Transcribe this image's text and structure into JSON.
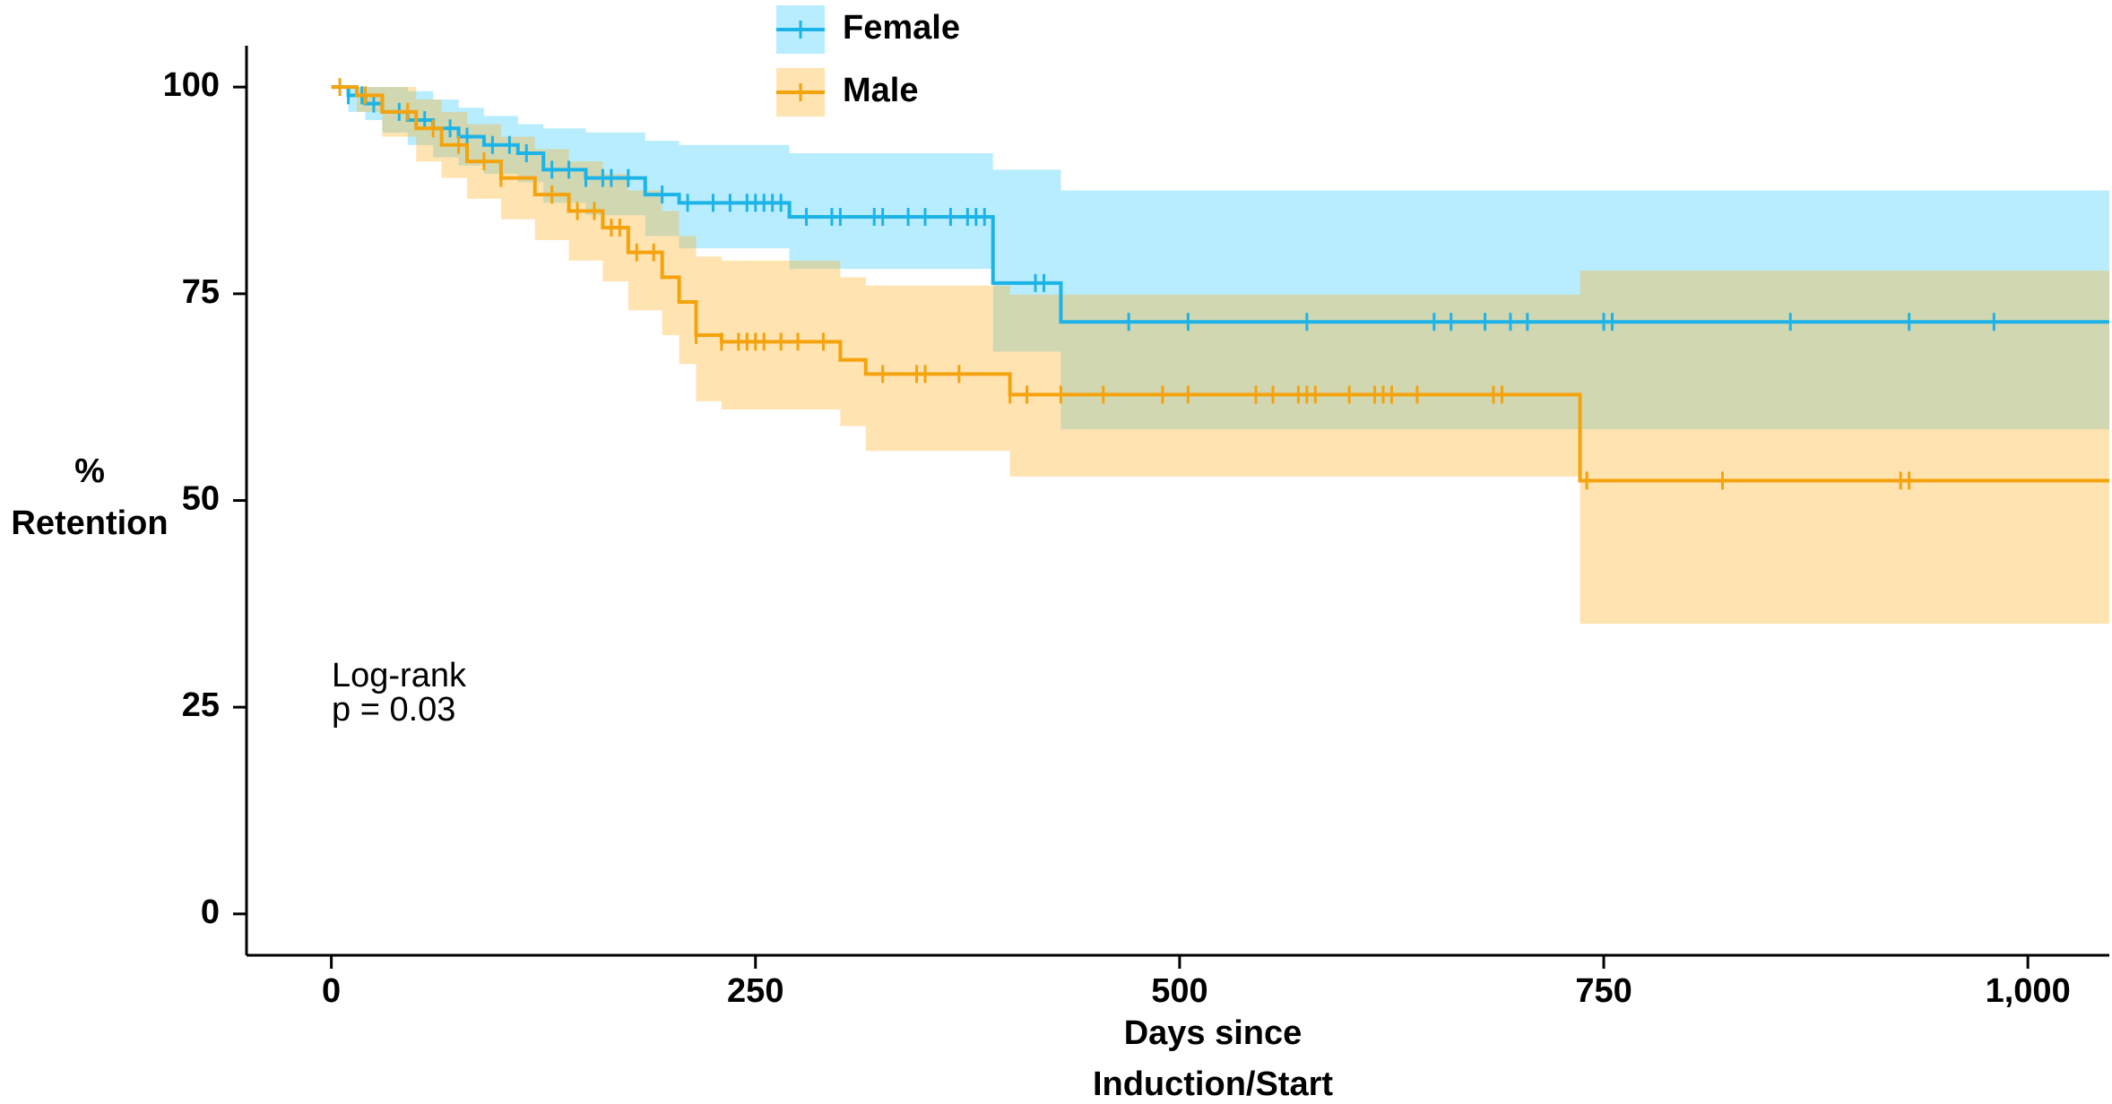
{
  "chart_data": {
    "type": "km",
    "legend_position": "top",
    "x_label": [
      "Days since",
      "Induction/Start"
    ],
    "y_label": [
      "%",
      "Retention"
    ],
    "annotation": [
      "Log-rank",
      "p = 0.03"
    ],
    "xlim": [
      -50,
      1048
    ],
    "ylim": [
      -5,
      105
    ],
    "xticks": [
      0,
      250,
      500,
      750,
      {
        "value": 1000,
        "label": "1,000"
      }
    ],
    "yticks": [
      0,
      25,
      50,
      75,
      100
    ],
    "series": [
      {
        "name": "Female",
        "color": "#1cb4e8",
        "band_color": "#33ccff",
        "x": [
          0,
          10,
          20,
          30,
          45,
          60,
          75,
          90,
          110,
          125,
          150,
          185,
          205,
          270,
          390,
          430
        ],
        "values": [
          100,
          99,
          98,
          97,
          96,
          95,
          94,
          93,
          92,
          90,
          89,
          87,
          86,
          84.3,
          76.3,
          71.6
        ],
        "upper": [
          100,
          100,
          100,
          100,
          99.5,
          98.5,
          97.5,
          96.5,
          95.5,
          95,
          94.5,
          93.5,
          93,
          92,
          90,
          87.5
        ],
        "lower": [
          100,
          97,
          96,
          94.5,
          93,
          91.5,
          90.5,
          89.5,
          88.5,
          86,
          84.5,
          82,
          80.5,
          78,
          68,
          58.6
        ],
        "censor_x": [
          10,
          18,
          25,
          40,
          55,
          70,
          80,
          95,
          105,
          115,
          130,
          140,
          150,
          160,
          165,
          175,
          195,
          210,
          225,
          235,
          245,
          250,
          255,
          260,
          265,
          280,
          295,
          300,
          320,
          325,
          340,
          350,
          365,
          375,
          380,
          385,
          415,
          420,
          470,
          505,
          575,
          650,
          660,
          680,
          695,
          705,
          750,
          755,
          860,
          930,
          980
        ]
      },
      {
        "name": "Male",
        "color": "#f5a30c",
        "band_color": "#ffb020",
        "x": [
          0,
          15,
          30,
          50,
          65,
          80,
          100,
          120,
          140,
          160,
          175,
          195,
          205,
          215,
          230,
          300,
          315,
          400,
          736
        ],
        "values": [
          100,
          99,
          97,
          95,
          93,
          91,
          89,
          87,
          85,
          83,
          80,
          77,
          74,
          70,
          69.2,
          67,
          65.3,
          62.8,
          52.4
        ],
        "upper": [
          100,
          100,
          100,
          98.5,
          97,
          95.5,
          94,
          92.5,
          91,
          89.5,
          87.5,
          85,
          82,
          79.5,
          79,
          77,
          76,
          74.9,
          77.8
        ],
        "lower": [
          100,
          97,
          94,
          91,
          89,
          86.5,
          84,
          81.5,
          79,
          76.5,
          73,
          70,
          66.5,
          62,
          61,
          59,
          56,
          52.9,
          35.1
        ],
        "censor_x": [
          5,
          20,
          45,
          60,
          75,
          90,
          100,
          130,
          145,
          155,
          165,
          170,
          180,
          190,
          215,
          230,
          240,
          245,
          250,
          255,
          265,
          275,
          290,
          325,
          345,
          350,
          370,
          400,
          410,
          430,
          455,
          490,
          505,
          545,
          555,
          570,
          575,
          580,
          600,
          615,
          620,
          625,
          640,
          685,
          690,
          740,
          820,
          925,
          930
        ]
      }
    ]
  }
}
